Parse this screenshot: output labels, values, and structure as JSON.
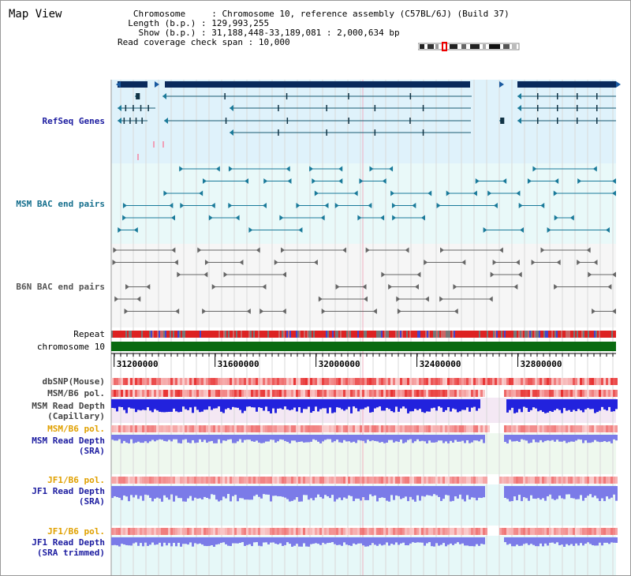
{
  "title": "Map View",
  "header": {
    "chromosome_label": "Chromosome",
    "chromosome_value": "Chromosome 10, reference assembly (C57BL/6J) (Build 37)",
    "length_label": "Length (b.p.)",
    "length_value": "129,993,255",
    "show_label": "Show (b.p.)",
    "show_value": "31,188,448-33,189,081 : 2,000,634 bp",
    "coverage_label": "Read coverage check span",
    "coverage_value": "10,000"
  },
  "view": {
    "start": 31188448,
    "end": 33189081
  },
  "scale": {
    "ticks": [
      31200000,
      31600000,
      32000000,
      32400000,
      32800000
    ],
    "labels": [
      "31200000",
      "31600000",
      "32000000",
      "32400000",
      "32800000"
    ]
  },
  "tracks": {
    "refseq": "RefSeq Genes",
    "msm_bac": "MSM BAC end pairs",
    "b6n_bac": "B6N BAC end pairs",
    "repeat": "Repeat",
    "chromosome": "chromosome 10",
    "dbsnp": "dbSNP(Mouse)",
    "msm_b6_pol": "MSM/B6 pol.",
    "msm_depth_cap_1": "MSM Read Depth",
    "msm_depth_cap_2": "(Capillary)",
    "msm_b6_pol_sra": "MSM/B6 pol.",
    "msm_depth_sra_1": "MSM Read Depth",
    "msm_depth_sra_2": "(SRA)",
    "jf1_b6_pol": "JF1/B6 pol.",
    "jf1_depth_sra_1": "JF1 Read Depth",
    "jf1_depth_sra_2": "(SRA)",
    "jf1_b6_pol_trim": "JF1/B6 pol.",
    "jf1_depth_trim_1": "JF1 Read Depth",
    "jf1_depth_trim_2": "(SRA trimmed)"
  },
  "colors": {
    "refseq_bg": "#dff2fb",
    "bac_bg": "#e9f9f9",
    "gene_fill": "#0a2a5c",
    "msm_feature": "#1a7a9a",
    "b6n_feature": "#666666",
    "chrom_bar": "#0a6a10",
    "depth_blue": "#2222dd",
    "depth_light": "#7b7be8",
    "pol_red": "#ee3333"
  }
}
